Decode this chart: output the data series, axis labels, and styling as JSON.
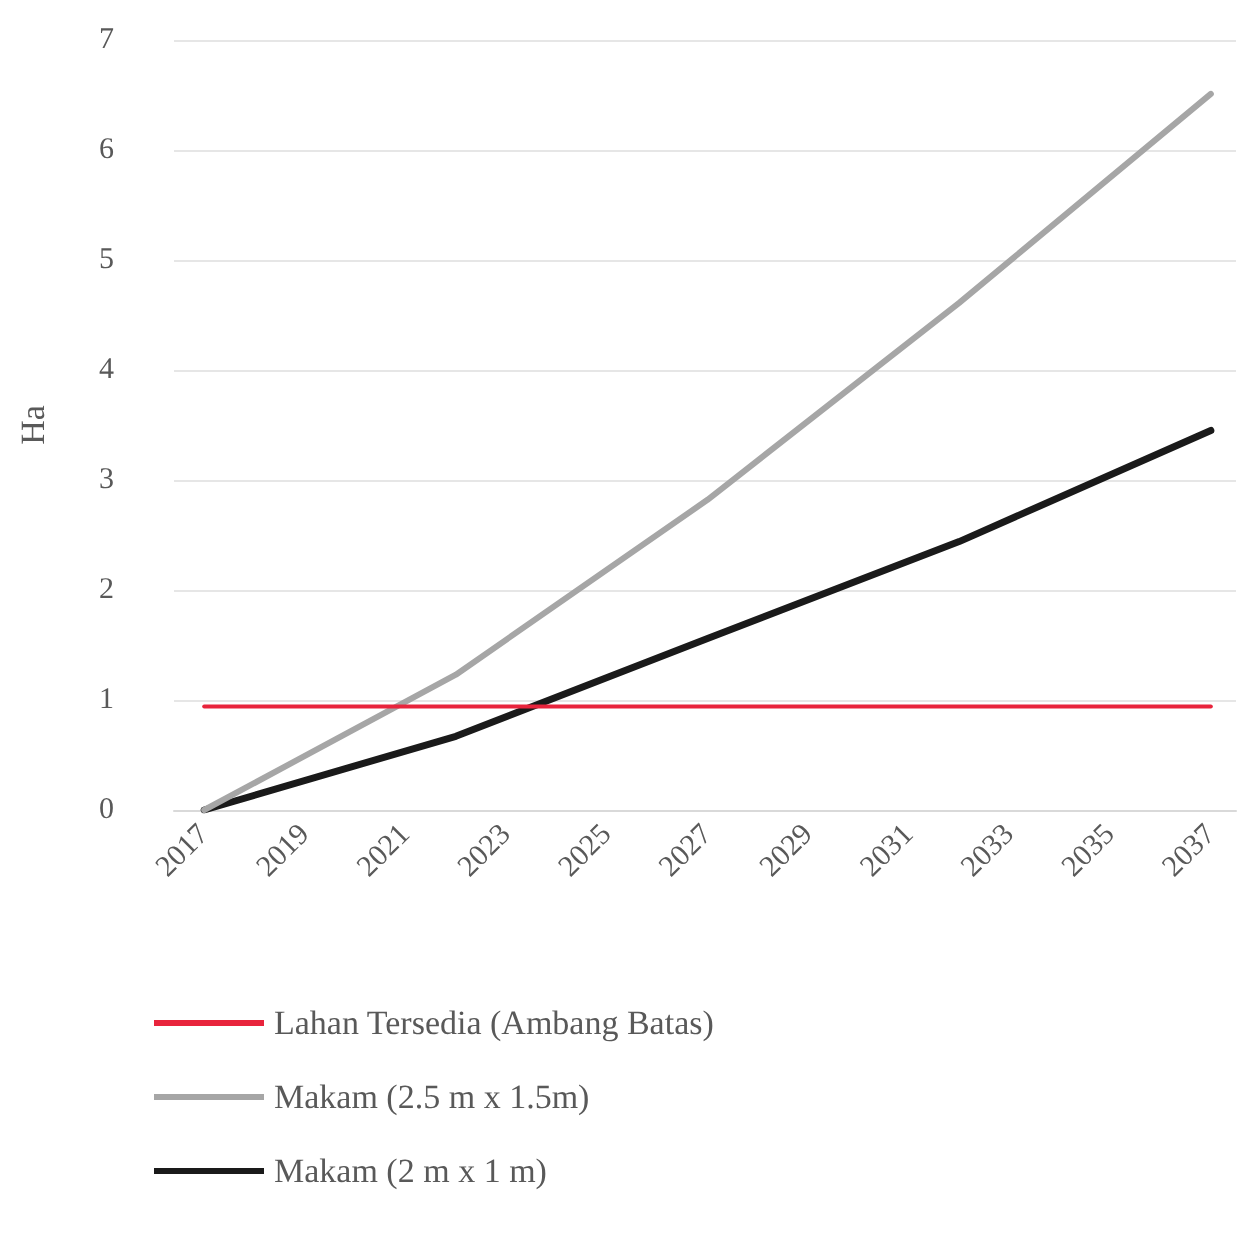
{
  "chart_data": {
    "type": "line",
    "ylabel": "Ha",
    "xlim": [
      2016.4,
      2037.5
    ],
    "xticks": [
      2017,
      2019,
      2021,
      2023,
      2025,
      2027,
      2029,
      2031,
      2033,
      2035,
      2037
    ],
    "ylim": [
      0,
      7
    ],
    "yticks": [
      0,
      1,
      2,
      3,
      4,
      5,
      6,
      7
    ],
    "x": [
      2017,
      2022,
      2027,
      2032,
      2037
    ],
    "series": [
      {
        "name": "Lahan Tersedia (Ambang Batas)",
        "color": "#e8243c",
        "values": [
          0.94,
          0.94,
          0.94,
          0.94,
          0.94
        ]
      },
      {
        "name": "Makam (2.5 m x 1.5m)",
        "color": "#a6a6a6",
        "values": [
          0,
          1.23,
          2.82,
          4.61,
          6.51
        ]
      },
      {
        "name": "Makam (2 m x 1 m)",
        "color": "#1a1a1a",
        "values": [
          0,
          0.67,
          1.56,
          2.44,
          3.45
        ]
      }
    ],
    "grid": "y",
    "legend": "bottom",
    "marker": "none",
    "line_style": "solid"
  }
}
